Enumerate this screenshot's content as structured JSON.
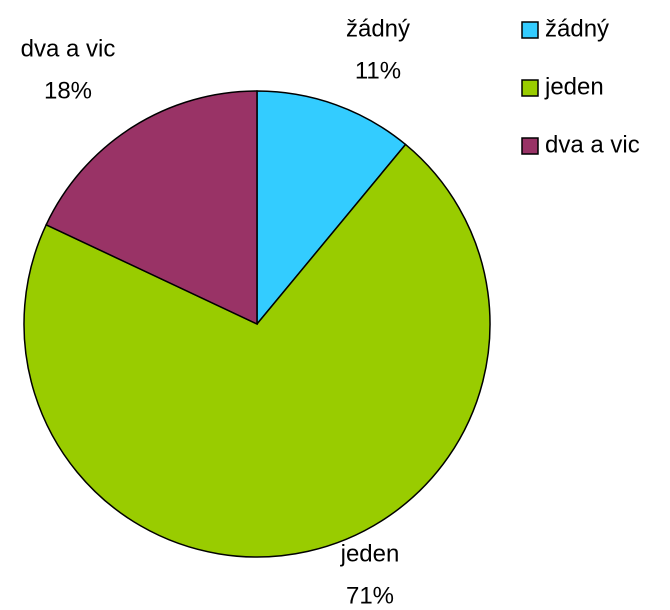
{
  "chart_data": {
    "type": "pie",
    "categories": [
      "žádný",
      "jeden",
      "dva a vic"
    ],
    "values": [
      11,
      71,
      18
    ],
    "value_labels": [
      "11%",
      "71%",
      "18%"
    ],
    "colors": [
      "#33ccff",
      "#99cc00",
      "#993366"
    ],
    "legend": "right"
  }
}
